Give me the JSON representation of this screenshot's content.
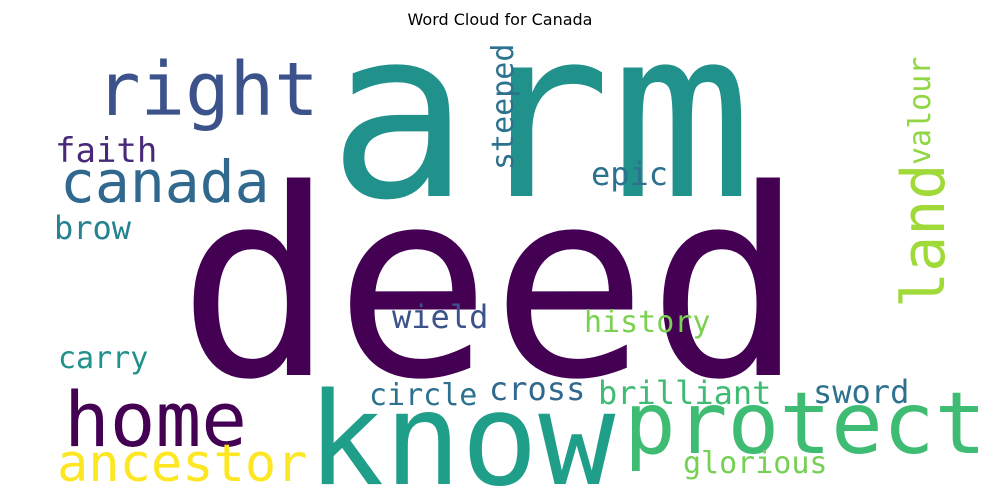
{
  "title": "Word Cloud for Canada",
  "words": [
    {
      "text": "arm",
      "color": "#21918c"
    },
    {
      "text": "deed",
      "color": "#440154"
    },
    {
      "text": "right",
      "color": "#3b528b"
    },
    {
      "text": "canada",
      "color": "#31688e"
    },
    {
      "text": "faith",
      "color": "#482878"
    },
    {
      "text": "brow",
      "color": "#26828e"
    },
    {
      "text": "steeped",
      "color": "#2c728e"
    },
    {
      "text": "epic",
      "color": "#2c728e"
    },
    {
      "text": "valour",
      "color": "#90d743"
    },
    {
      "text": "land",
      "color": "#a0da39"
    },
    {
      "text": "wield",
      "color": "#3b528b"
    },
    {
      "text": "history",
      "color": "#7ad151"
    },
    {
      "text": "carry",
      "color": "#21918c"
    },
    {
      "text": "home",
      "color": "#440154"
    },
    {
      "text": "circle",
      "color": "#2c728e"
    },
    {
      "text": "cross",
      "color": "#31688e"
    },
    {
      "text": "brilliant",
      "color": "#3fbc73"
    },
    {
      "text": "sword",
      "color": "#2c728e"
    },
    {
      "text": "know",
      "color": "#1f9e89"
    },
    {
      "text": "protect",
      "color": "#3fbc73"
    },
    {
      "text": "ancestor",
      "color": "#fde725"
    },
    {
      "text": "glorious",
      "color": "#75d054"
    }
  ]
}
